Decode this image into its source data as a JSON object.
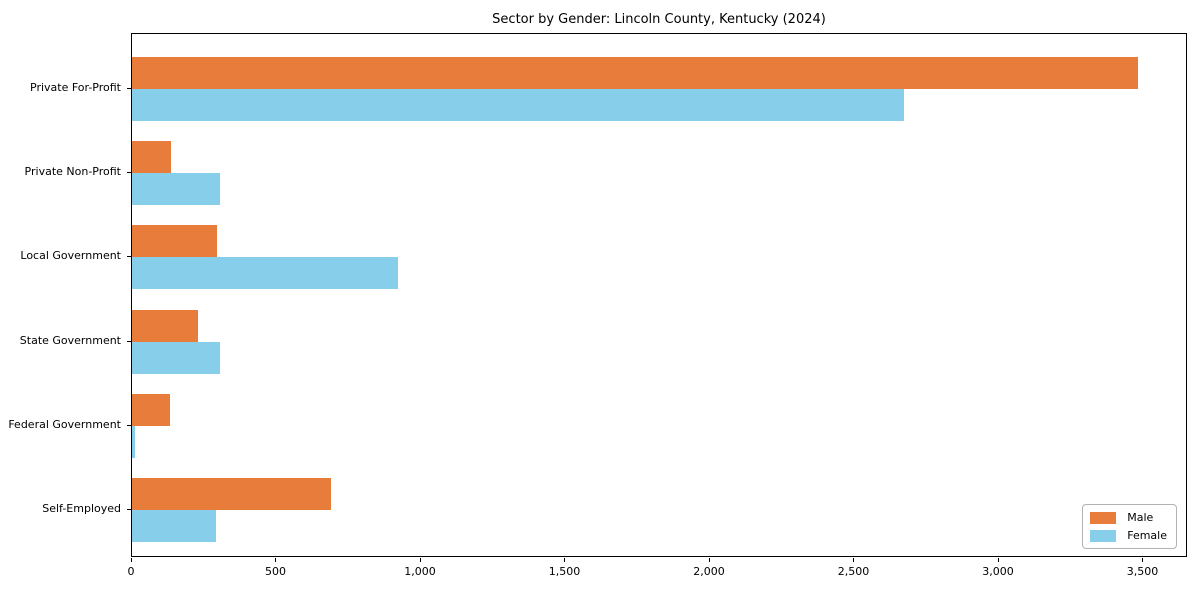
{
  "chart_data": {
    "type": "bar",
    "orientation": "horizontal",
    "title": "Sector by Gender: Lincoln County, Kentucky (2024)",
    "categories": [
      "Private For-Profit",
      "Private Non-Profit",
      "Local Government",
      "State Government",
      "Federal Government",
      "Self-Employed"
    ],
    "series": [
      {
        "name": "Male",
        "color": "#e87d3b",
        "values": [
          3480,
          135,
          295,
          230,
          130,
          690
        ]
      },
      {
        "name": "Female",
        "color": "#87ceeb",
        "values": [
          2670,
          305,
          920,
          305,
          10,
          290
        ]
      }
    ],
    "xlabel": "",
    "ylabel": "",
    "xlim": [
      0,
      3654
    ],
    "x_tick_values": [
      0,
      500,
      1000,
      1500,
      2000,
      2500,
      3000,
      3500
    ],
    "x_tick_labels": [
      "0",
      "500",
      "1,000",
      "1,500",
      "2,000",
      "2,500",
      "3,000",
      "3,500"
    ],
    "legend_position": "lower right",
    "grid": false,
    "frame_color": "#000000",
    "background_color": "#ffffff"
  }
}
